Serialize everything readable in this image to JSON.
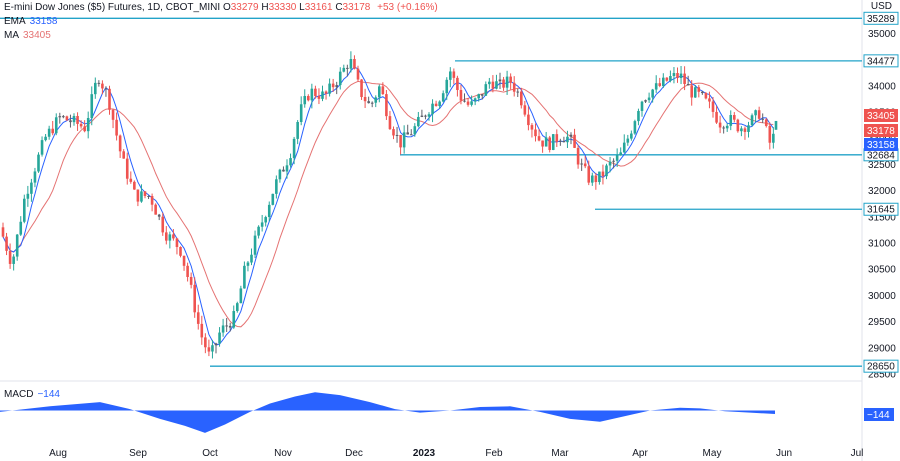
{
  "header": {
    "title": "E-mini Dow Jones ($5) Futures, 1D, CBOT_MINI",
    "open_label": "O",
    "open": "33279",
    "high_label": "H",
    "high": "33330",
    "low_label": "L",
    "low": "33161",
    "close_label": "C",
    "close": "33178",
    "change": "+53 (+0.16%)",
    "currency": "USD"
  },
  "indicators": {
    "ema_label": "EMA",
    "ema_value": "33158",
    "ma_label": "MA",
    "ma_value": "33405",
    "macd_label": "MACD",
    "macd_value": "−144"
  },
  "colors": {
    "up": "#26a69a",
    "down": "#ef5350",
    "grey_candle": "#5d606b",
    "level_line": "#22a3c8",
    "ema": "#2962ff",
    "ma": "#e57373",
    "macd_fill": "#2962ff",
    "axis_text": "#131722"
  },
  "chart_data": {
    "type": "candlestick",
    "title": "E-mini Dow Jones ($5) Futures, 1D, CBOT_MINI",
    "x_tick_labels": [
      "Aug",
      "Sep",
      "Oct",
      "Nov",
      "Dec",
      "2023",
      "Feb",
      "Mar",
      "Apr",
      "May",
      "Jun",
      "Jul"
    ],
    "y_tick_labels": [
      "35000",
      "34500",
      "34000",
      "33500",
      "33000",
      "32500",
      "32000",
      "31500",
      "31000",
      "30500",
      "30000",
      "29500",
      "29000",
      "28500"
    ],
    "ylim": [
      28450,
      35330
    ],
    "horizontal_levels": [
      35289,
      34477,
      32684,
      31645,
      28650
    ],
    "last_price_labels": {
      "ma": 33405,
      "close": 33178,
      "ema": 33158
    },
    "price_path": [
      [
        0,
        31300
      ],
      [
        12,
        30600
      ],
      [
        25,
        31900
      ],
      [
        45,
        33000
      ],
      [
        60,
        33400
      ],
      [
        75,
        33300
      ],
      [
        85,
        33200
      ],
      [
        98,
        34200
      ],
      [
        108,
        33800
      ],
      [
        122,
        32600
      ],
      [
        135,
        31900
      ],
      [
        150,
        31900
      ],
      [
        165,
        31200
      ],
      [
        180,
        30900
      ],
      [
        190,
        30200
      ],
      [
        200,
        29300
      ],
      [
        210,
        28800
      ],
      [
        220,
        29300
      ],
      [
        235,
        29600
      ],
      [
        245,
        30500
      ],
      [
        260,
        31300
      ],
      [
        275,
        32100
      ],
      [
        290,
        32700
      ],
      [
        300,
        33500
      ],
      [
        310,
        33900
      ],
      [
        325,
        33800
      ],
      [
        340,
        34200
      ],
      [
        350,
        34500
      ],
      [
        360,
        33900
      ],
      [
        370,
        33600
      ],
      [
        380,
        34000
      ],
      [
        390,
        33300
      ],
      [
        400,
        32900
      ],
      [
        415,
        33200
      ],
      [
        430,
        33600
      ],
      [
        440,
        33800
      ],
      [
        450,
        34300
      ],
      [
        460,
        33800
      ],
      [
        470,
        33600
      ],
      [
        480,
        33800
      ],
      [
        490,
        34100
      ],
      [
        500,
        34000
      ],
      [
        510,
        34100
      ],
      [
        520,
        33800
      ],
      [
        530,
        33300
      ],
      [
        540,
        32950
      ],
      [
        550,
        32900
      ],
      [
        560,
        33050
      ],
      [
        570,
        33000
      ],
      [
        580,
        32500
      ],
      [
        590,
        32200
      ],
      [
        600,
        32250
      ],
      [
        610,
        32500
      ],
      [
        620,
        32650
      ],
      [
        630,
        33100
      ],
      [
        640,
        33700
      ],
      [
        650,
        33900
      ],
      [
        660,
        34000
      ],
      [
        670,
        34150
      ],
      [
        680,
        34200
      ],
      [
        690,
        33900
      ],
      [
        700,
        33800
      ],
      [
        710,
        33600
      ],
      [
        720,
        33300
      ],
      [
        730,
        33350
      ],
      [
        740,
        33200
      ],
      [
        750,
        33300
      ],
      [
        760,
        33500
      ],
      [
        770,
        32900
      ],
      [
        778,
        33178
      ]
    ],
    "macd": {
      "label": "MACD",
      "last_value": -144,
      "histogram_path": [
        [
          0,
          -10
        ],
        [
          50,
          30
        ],
        [
          100,
          60
        ],
        [
          130,
          10
        ],
        [
          160,
          -60
        ],
        [
          185,
          -110
        ],
        [
          205,
          -160
        ],
        [
          225,
          -100
        ],
        [
          250,
          -10
        ],
        [
          270,
          50
        ],
        [
          295,
          100
        ],
        [
          315,
          130
        ],
        [
          340,
          110
        ],
        [
          370,
          60
        ],
        [
          395,
          10
        ],
        [
          420,
          -15
        ],
        [
          450,
          0
        ],
        [
          480,
          25
        ],
        [
          510,
          30
        ],
        [
          540,
          -10
        ],
        [
          570,
          -60
        ],
        [
          600,
          -80
        ],
        [
          625,
          -40
        ],
        [
          650,
          0
        ],
        [
          680,
          20
        ],
        [
          700,
          15
        ],
        [
          725,
          -5
        ],
        [
          750,
          -15
        ],
        [
          775,
          -25
        ]
      ]
    }
  }
}
